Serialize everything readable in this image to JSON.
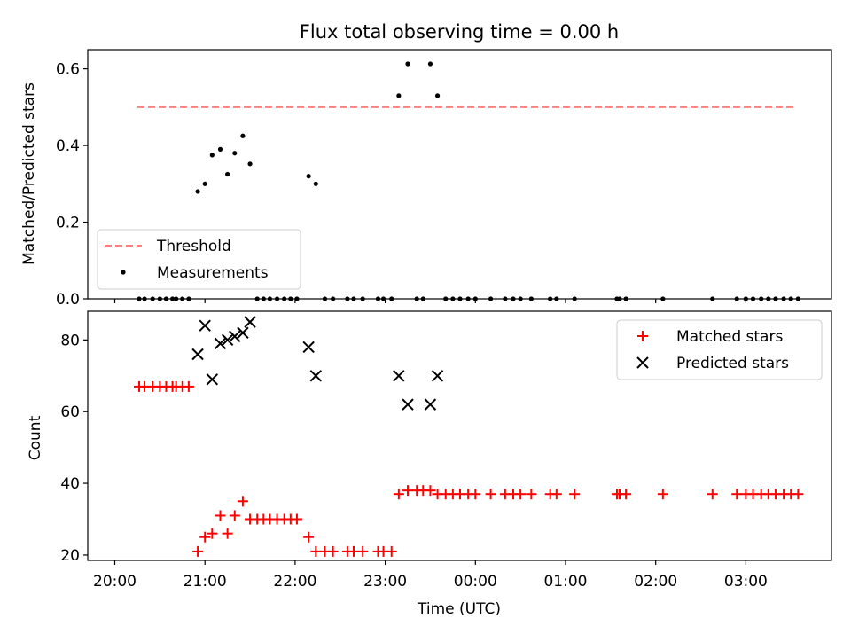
{
  "chart_data": [
    {
      "type": "scatter",
      "title": "Flux total observing time = 0.00 h",
      "xlabel": "",
      "ylabel": "Matched/Predicted stars",
      "ylim": [
        0,
        0.65
      ],
      "yticks": [
        "0.0",
        "0.2",
        "0.4",
        "0.6"
      ],
      "threshold": {
        "name": "Threshold",
        "value": 0.5,
        "x_start_h": 20.25,
        "x_end_h": 27.55,
        "color": "#ff7f7f"
      },
      "legend": {
        "placement": "lower-left",
        "entries": [
          "Threshold",
          "Measurements"
        ]
      },
      "series": [
        {
          "name": "Measurements",
          "color": "#000000",
          "points": [
            {
              "x_h": 20.27,
              "y": 0
            },
            {
              "x_h": 20.33,
              "y": 0
            },
            {
              "x_h": 20.42,
              "y": 0
            },
            {
              "x_h": 20.5,
              "y": 0
            },
            {
              "x_h": 20.57,
              "y": 0
            },
            {
              "x_h": 20.64,
              "y": 0
            },
            {
              "x_h": 20.68,
              "y": 0
            },
            {
              "x_h": 20.75,
              "y": 0
            },
            {
              "x_h": 20.82,
              "y": 0
            },
            {
              "x_h": 20.92,
              "y": 0.28
            },
            {
              "x_h": 21.0,
              "y": 0.3
            },
            {
              "x_h": 21.08,
              "y": 0.375
            },
            {
              "x_h": 21.17,
              "y": 0.39
            },
            {
              "x_h": 21.25,
              "y": 0.325
            },
            {
              "x_h": 21.33,
              "y": 0.38
            },
            {
              "x_h": 21.42,
              "y": 0.425
            },
            {
              "x_h": 21.5,
              "y": 0.352
            },
            {
              "x_h": 21.58,
              "y": 0
            },
            {
              "x_h": 21.65,
              "y": 0
            },
            {
              "x_h": 21.72,
              "y": 0
            },
            {
              "x_h": 21.8,
              "y": 0
            },
            {
              "x_h": 21.88,
              "y": 0
            },
            {
              "x_h": 21.95,
              "y": 0
            },
            {
              "x_h": 22.02,
              "y": 0
            },
            {
              "x_h": 22.15,
              "y": 0.32
            },
            {
              "x_h": 22.23,
              "y": 0.3
            },
            {
              "x_h": 22.33,
              "y": 0
            },
            {
              "x_h": 22.42,
              "y": 0
            },
            {
              "x_h": 22.58,
              "y": 0
            },
            {
              "x_h": 22.65,
              "y": 0
            },
            {
              "x_h": 22.75,
              "y": 0
            },
            {
              "x_h": 22.92,
              "y": 0
            },
            {
              "x_h": 22.98,
              "y": 0
            },
            {
              "x_h": 23.07,
              "y": 0
            },
            {
              "x_h": 23.15,
              "y": 0.53
            },
            {
              "x_h": 23.25,
              "y": 0.613
            },
            {
              "x_h": 23.35,
              "y": 0
            },
            {
              "x_h": 23.42,
              "y": 0
            },
            {
              "x_h": 23.5,
              "y": 0.613
            },
            {
              "x_h": 23.58,
              "y": 0.53
            },
            {
              "x_h": 23.67,
              "y": 0
            },
            {
              "x_h": 23.75,
              "y": 0
            },
            {
              "x_h": 23.83,
              "y": 0
            },
            {
              "x_h": 23.92,
              "y": 0
            },
            {
              "x_h": 24.0,
              "y": 0
            },
            {
              "x_h": 24.17,
              "y": 0
            },
            {
              "x_h": 24.33,
              "y": 0
            },
            {
              "x_h": 24.42,
              "y": 0
            },
            {
              "x_h": 24.5,
              "y": 0
            },
            {
              "x_h": 24.62,
              "y": 0
            },
            {
              "x_h": 24.83,
              "y": 0
            },
            {
              "x_h": 24.9,
              "y": 0
            },
            {
              "x_h": 25.1,
              "y": 0
            },
            {
              "x_h": 25.57,
              "y": 0
            },
            {
              "x_h": 25.6,
              "y": 0
            },
            {
              "x_h": 25.67,
              "y": 0
            },
            {
              "x_h": 26.08,
              "y": 0
            },
            {
              "x_h": 26.63,
              "y": 0
            },
            {
              "x_h": 26.9,
              "y": 0
            },
            {
              "x_h": 27.0,
              "y": 0
            },
            {
              "x_h": 27.08,
              "y": 0
            },
            {
              "x_h": 27.17,
              "y": 0
            },
            {
              "x_h": 27.25,
              "y": 0
            },
            {
              "x_h": 27.33,
              "y": 0
            },
            {
              "x_h": 27.42,
              "y": 0
            },
            {
              "x_h": 27.5,
              "y": 0
            },
            {
              "x_h": 27.58,
              "y": 0
            }
          ]
        }
      ]
    },
    {
      "type": "scatter",
      "title": "",
      "xlabel": "Time (UTC)",
      "ylabel": "Count",
      "ylim": [
        18.5,
        88
      ],
      "yticks": [
        "20",
        "40",
        "60",
        "80"
      ],
      "xlim_h": [
        19.7,
        27.95
      ],
      "xticks": [
        "20:00",
        "21:00",
        "22:00",
        "23:00",
        "00:00",
        "01:00",
        "02:00",
        "03:00"
      ],
      "legend": {
        "placement": "upper-right",
        "entries": [
          "Matched stars",
          "Predicted stars"
        ]
      },
      "series": [
        {
          "name": "Matched stars",
          "marker": "plus",
          "color": "#ff0000",
          "points": [
            {
              "x_h": 20.27,
              "y": 67
            },
            {
              "x_h": 20.33,
              "y": 67
            },
            {
              "x_h": 20.42,
              "y": 67
            },
            {
              "x_h": 20.5,
              "y": 67
            },
            {
              "x_h": 20.57,
              "y": 67
            },
            {
              "x_h": 20.64,
              "y": 67
            },
            {
              "x_h": 20.68,
              "y": 67
            },
            {
              "x_h": 20.75,
              "y": 67
            },
            {
              "x_h": 20.82,
              "y": 67
            },
            {
              "x_h": 20.92,
              "y": 21
            },
            {
              "x_h": 21.0,
              "y": 25
            },
            {
              "x_h": 21.08,
              "y": 26
            },
            {
              "x_h": 21.17,
              "y": 31
            },
            {
              "x_h": 21.25,
              "y": 26
            },
            {
              "x_h": 21.33,
              "y": 31
            },
            {
              "x_h": 21.42,
              "y": 35
            },
            {
              "x_h": 21.5,
              "y": 30
            },
            {
              "x_h": 21.58,
              "y": 30
            },
            {
              "x_h": 21.65,
              "y": 30
            },
            {
              "x_h": 21.72,
              "y": 30
            },
            {
              "x_h": 21.8,
              "y": 30
            },
            {
              "x_h": 21.88,
              "y": 30
            },
            {
              "x_h": 21.95,
              "y": 30
            },
            {
              "x_h": 22.02,
              "y": 30
            },
            {
              "x_h": 22.15,
              "y": 25
            },
            {
              "x_h": 22.23,
              "y": 21
            },
            {
              "x_h": 22.33,
              "y": 21
            },
            {
              "x_h": 22.42,
              "y": 21
            },
            {
              "x_h": 22.58,
              "y": 21
            },
            {
              "x_h": 22.65,
              "y": 21
            },
            {
              "x_h": 22.75,
              "y": 21
            },
            {
              "x_h": 22.92,
              "y": 21
            },
            {
              "x_h": 22.98,
              "y": 21
            },
            {
              "x_h": 23.07,
              "y": 21
            },
            {
              "x_h": 23.15,
              "y": 37
            },
            {
              "x_h": 23.25,
              "y": 38
            },
            {
              "x_h": 23.35,
              "y": 38
            },
            {
              "x_h": 23.42,
              "y": 38
            },
            {
              "x_h": 23.5,
              "y": 38
            },
            {
              "x_h": 23.58,
              "y": 37
            },
            {
              "x_h": 23.67,
              "y": 37
            },
            {
              "x_h": 23.75,
              "y": 37
            },
            {
              "x_h": 23.83,
              "y": 37
            },
            {
              "x_h": 23.92,
              "y": 37
            },
            {
              "x_h": 24.0,
              "y": 37
            },
            {
              "x_h": 24.17,
              "y": 37
            },
            {
              "x_h": 24.33,
              "y": 37
            },
            {
              "x_h": 24.42,
              "y": 37
            },
            {
              "x_h": 24.5,
              "y": 37
            },
            {
              "x_h": 24.62,
              "y": 37
            },
            {
              "x_h": 24.83,
              "y": 37
            },
            {
              "x_h": 24.9,
              "y": 37
            },
            {
              "x_h": 25.1,
              "y": 37
            },
            {
              "x_h": 25.57,
              "y": 37
            },
            {
              "x_h": 25.6,
              "y": 37
            },
            {
              "x_h": 25.67,
              "y": 37
            },
            {
              "x_h": 26.08,
              "y": 37
            },
            {
              "x_h": 26.63,
              "y": 37
            },
            {
              "x_h": 26.9,
              "y": 37
            },
            {
              "x_h": 27.0,
              "y": 37
            },
            {
              "x_h": 27.08,
              "y": 37
            },
            {
              "x_h": 27.17,
              "y": 37
            },
            {
              "x_h": 27.25,
              "y": 37
            },
            {
              "x_h": 27.33,
              "y": 37
            },
            {
              "x_h": 27.42,
              "y": 37
            },
            {
              "x_h": 27.5,
              "y": 37
            },
            {
              "x_h": 27.58,
              "y": 37
            }
          ]
        },
        {
          "name": "Predicted stars",
          "marker": "x",
          "color": "#000000",
          "points": [
            {
              "x_h": 20.92,
              "y": 76
            },
            {
              "x_h": 21.0,
              "y": 84
            },
            {
              "x_h": 21.08,
              "y": 69
            },
            {
              "x_h": 21.17,
              "y": 79
            },
            {
              "x_h": 21.25,
              "y": 80
            },
            {
              "x_h": 21.33,
              "y": 81
            },
            {
              "x_h": 21.42,
              "y": 82
            },
            {
              "x_h": 21.5,
              "y": 85
            },
            {
              "x_h": 22.15,
              "y": 78
            },
            {
              "x_h": 22.23,
              "y": 70
            },
            {
              "x_h": 23.15,
              "y": 70
            },
            {
              "x_h": 23.25,
              "y": 62
            },
            {
              "x_h": 23.5,
              "y": 62
            },
            {
              "x_h": 23.58,
              "y": 70
            }
          ]
        }
      ]
    }
  ]
}
